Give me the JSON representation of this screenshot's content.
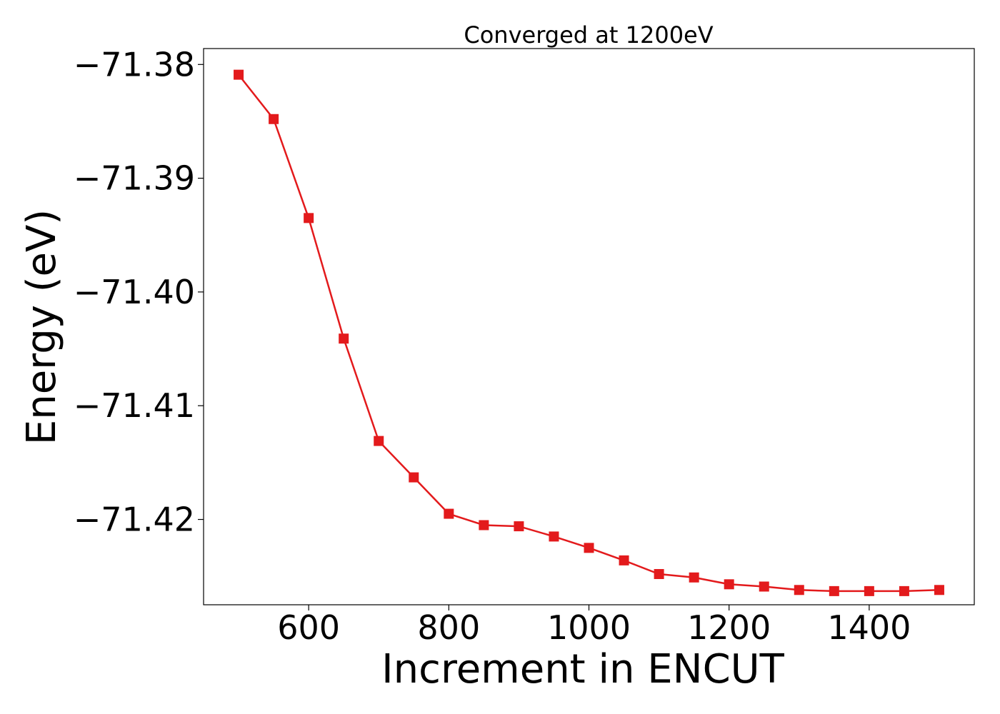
{
  "chart_data": {
    "type": "line",
    "title": "Converged at 1200eV",
    "xlabel": "Increment in ENCUT",
    "ylabel": "Energy (eV)",
    "xlim": [
      450,
      1550
    ],
    "ylim": [
      -71.4275,
      -71.3786
    ],
    "xticks": [
      600,
      800,
      1000,
      1200,
      1400
    ],
    "xtick_labels": [
      "600",
      "800",
      "1000",
      "1200",
      "1400"
    ],
    "yticks": [
      -71.38,
      -71.39,
      -71.4,
      -71.41,
      -71.42
    ],
    "ytick_labels": [
      "−71.38",
      "−71.39",
      "−71.40",
      "−71.41",
      "−71.42"
    ],
    "grid": false,
    "series": [
      {
        "color": "#e31a1c",
        "marker": "square",
        "x": [
          500,
          550,
          600,
          650,
          700,
          750,
          800,
          850,
          900,
          950,
          1000,
          1050,
          1100,
          1150,
          1200,
          1250,
          1300,
          1350,
          1400,
          1450,
          1500
        ],
        "y": [
          -71.3809,
          -71.3848,
          -71.3935,
          -71.4041,
          -71.4131,
          -71.4163,
          -71.4195,
          -71.4205,
          -71.4206,
          -71.4215,
          -71.4225,
          -71.4236,
          -71.4248,
          -71.4251,
          -71.4257,
          -71.4259,
          -71.4262,
          -71.4263,
          -71.4263,
          -71.4263,
          -71.4262
        ]
      }
    ]
  }
}
